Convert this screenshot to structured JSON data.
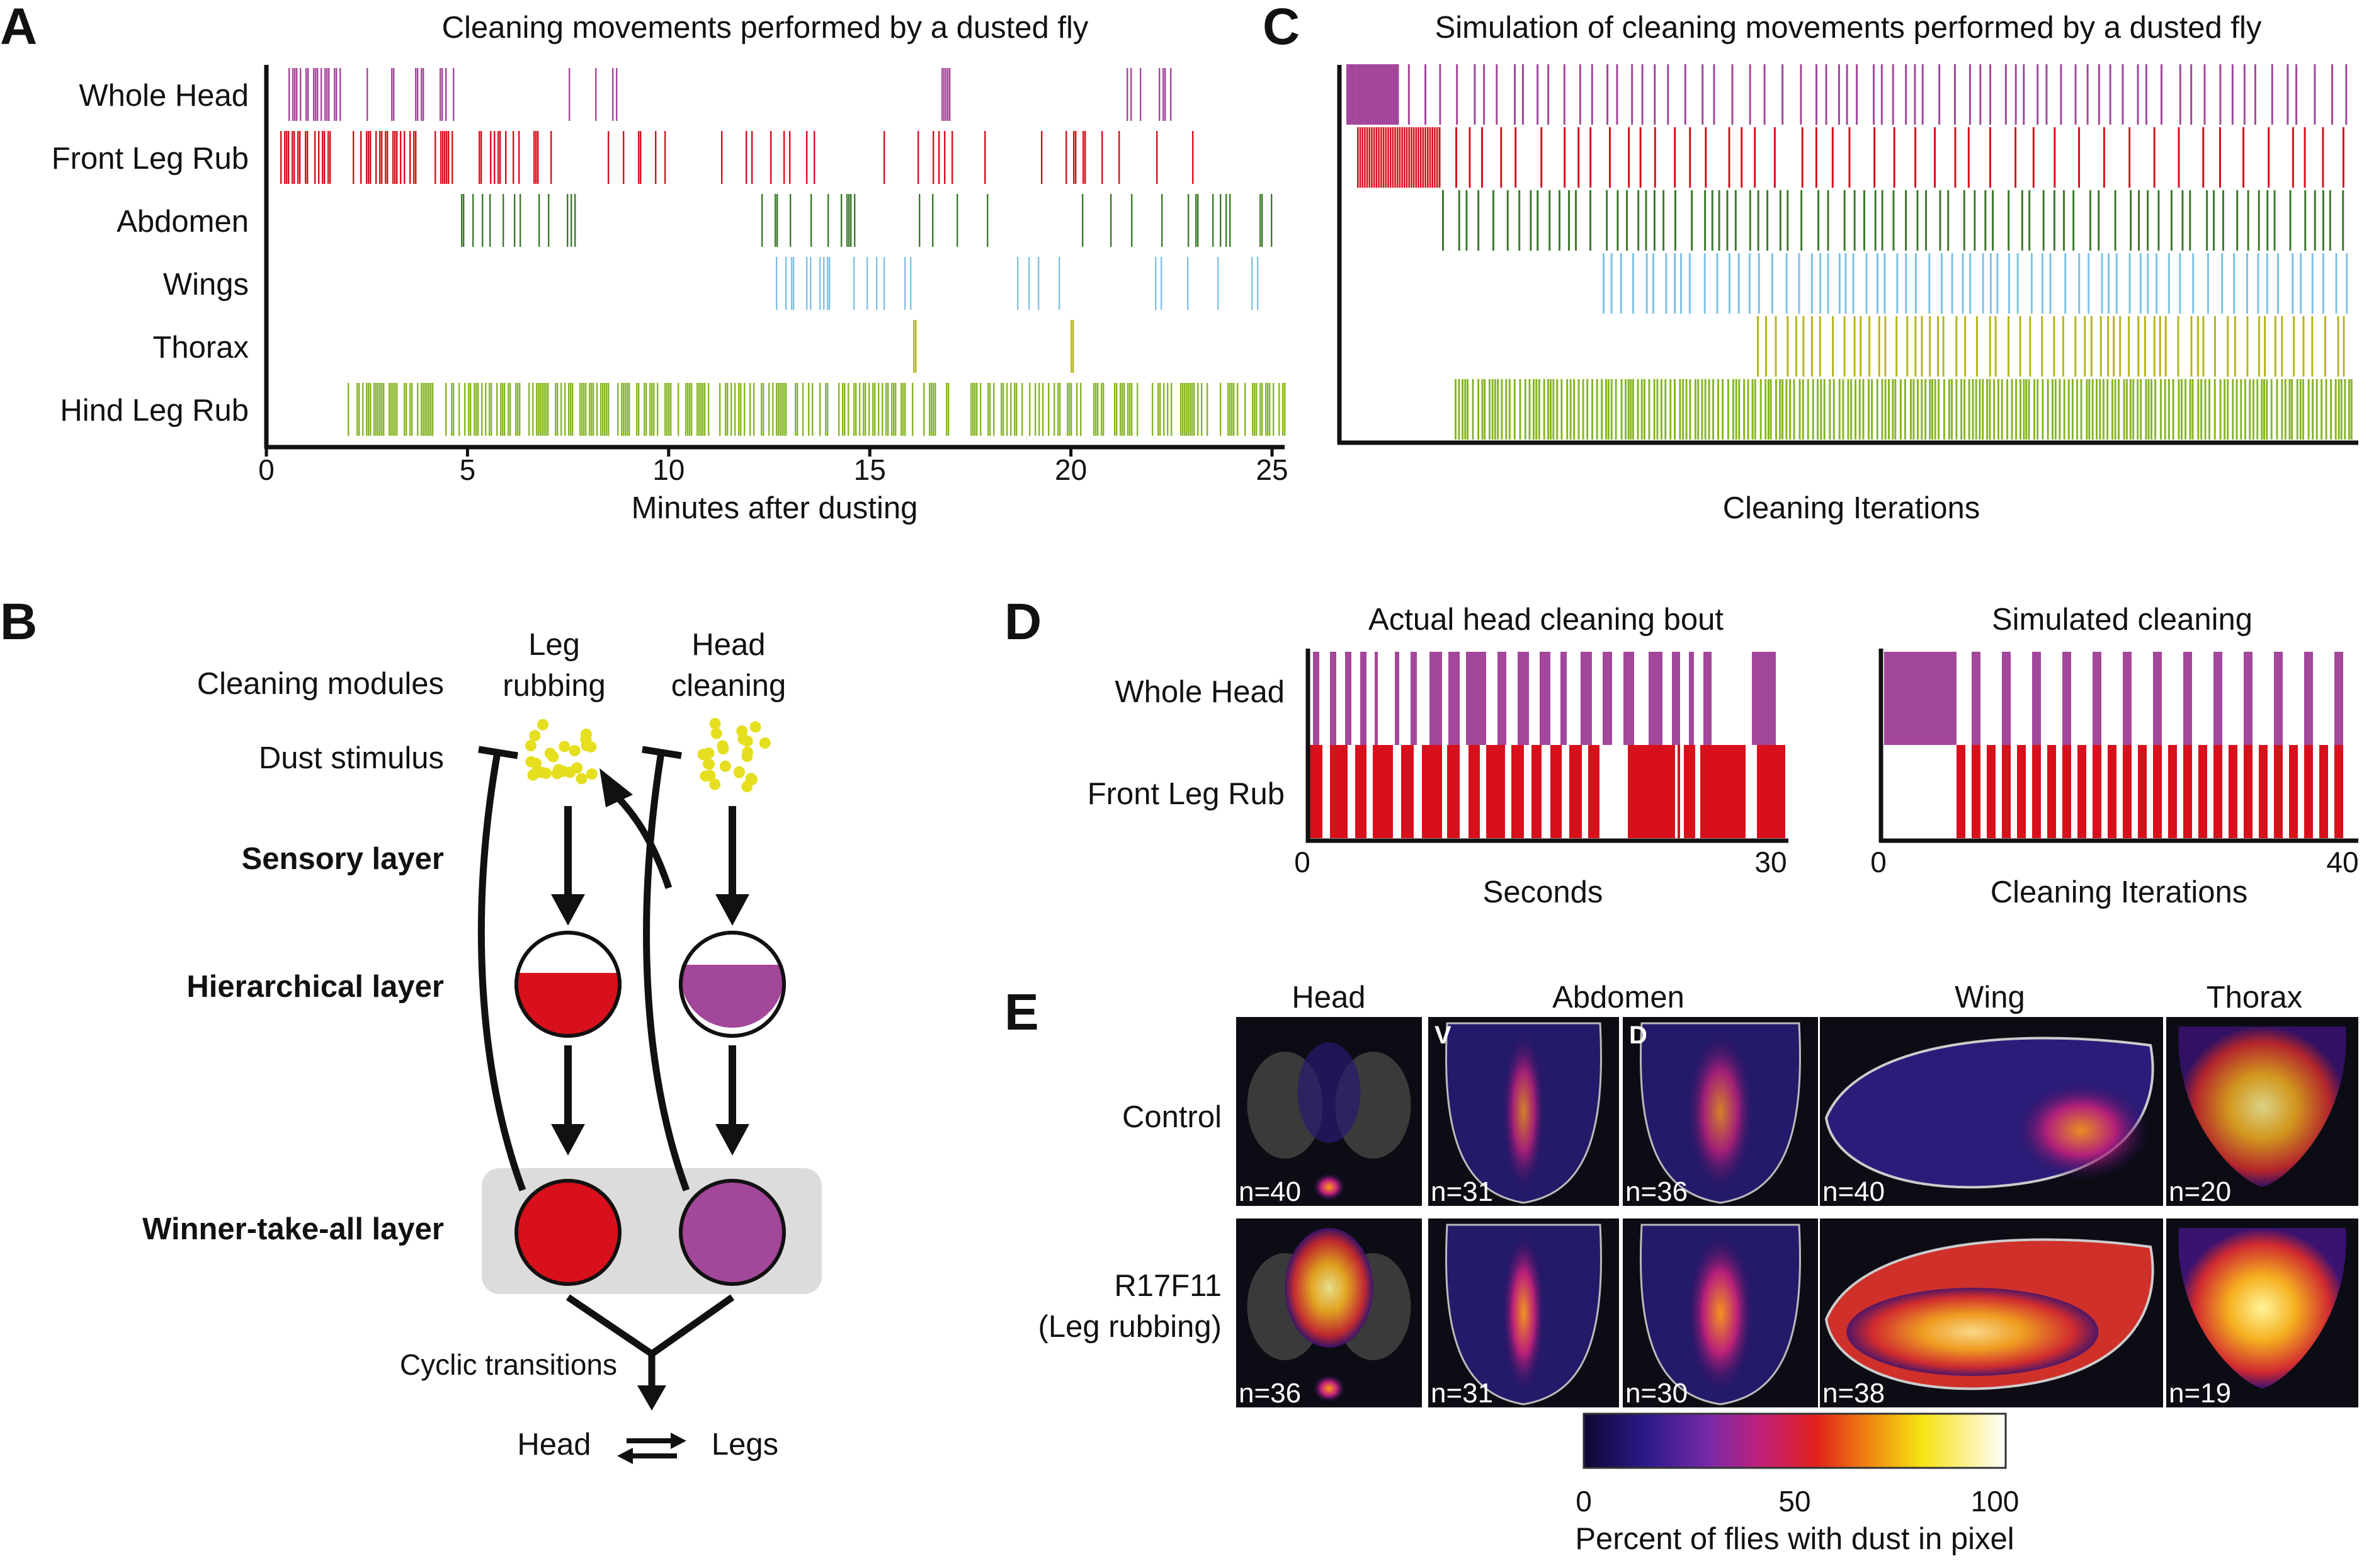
{
  "panelA": {
    "letter": "A",
    "title": "Cleaning movements performed by a dusted fly",
    "xlabel": "Minutes after dusting",
    "rows": [
      "Whole Head",
      "Front Leg Rub",
      "Abdomen",
      "Wings",
      "Thorax",
      "Hind Leg Rub"
    ],
    "ticks": [
      "0",
      "5",
      "10",
      "15",
      "20",
      "25"
    ]
  },
  "panelC": {
    "letter": "C",
    "title": "Simulation of cleaning movements performed by a dusted fly",
    "xlabel": "Cleaning Iterations"
  },
  "panelB": {
    "letter": "B",
    "cleaning_modules": "Cleaning modules",
    "leg_module": [
      "Leg",
      "rubbing"
    ],
    "head_module": [
      "Head",
      "cleaning"
    ],
    "dust_stimulus": "Dust stimulus",
    "sensory_layer": "Sensory layer",
    "hierarchical_layer": "Hierarchical layer",
    "wta_layer": "Winner-take-all layer",
    "cyclic": "Cyclic transitions",
    "head": "Head",
    "legs": "Legs"
  },
  "panelD": {
    "letter": "D",
    "actual_title": "Actual head cleaning bout",
    "sim_title": "Simulated cleaning",
    "rows": [
      "Whole Head",
      "Front Leg Rub"
    ],
    "actual_xlabel": "Seconds",
    "actual_ticks": [
      "0",
      "30"
    ],
    "sim_xlabel": "Cleaning Iterations",
    "sim_ticks": [
      "0",
      "40"
    ]
  },
  "panelE": {
    "letter": "E",
    "columns": [
      "Head",
      "Abdomen",
      "Wing",
      "Thorax"
    ],
    "abdomen_sub": [
      "V",
      "D"
    ],
    "rows": [
      {
        "label": [
          "Control"
        ],
        "n": [
          "n=40",
          "n=31",
          "n=36",
          "n=40",
          "n=20"
        ]
      },
      {
        "label": [
          "R17F11",
          "(Leg rubbing)"
        ],
        "n": [
          "n=36",
          "n=31",
          "n=30",
          "n=38",
          "n=19"
        ]
      }
    ],
    "colorbar_ticks": [
      "0",
      "50",
      "100"
    ],
    "colorbar_label": "Percent of flies with dust in pixel"
  },
  "colors": {
    "head": "#a3479a",
    "front_leg": "#d7101c",
    "abdomen": "#3d7a2c",
    "wings": "#7ec2e4",
    "thorax": "#b7b51e",
    "hind_leg": "#86b626",
    "wta_box": "#dcdcdc",
    "dust": "#e6df1f"
  }
}
